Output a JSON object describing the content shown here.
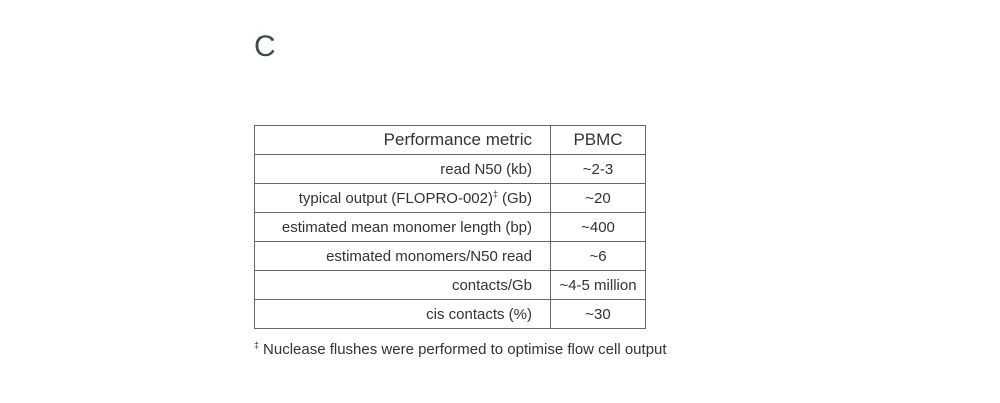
{
  "panel_label": "C",
  "table": {
    "header": [
      "Performance metric",
      "PBMC"
    ],
    "rows": [
      [
        "read N50 (kb)",
        "~2-3"
      ],
      [
        {
          "text": "typical output (FLOPRO-002)",
          "sup": "‡",
          "after": "(Gb)"
        },
        "~20"
      ],
      [
        "estimated mean monomer length (bp)",
        "~400"
      ],
      [
        "estimated monomers/N50 read",
        "~6"
      ],
      [
        "contacts/Gb",
        "~4-5 million"
      ],
      [
        "cis contacts (%)",
        "~30"
      ]
    ]
  },
  "footnote": {
    "mark": "‡",
    "text": "Nuclease flushes were performed to optimise flow cell output"
  }
}
